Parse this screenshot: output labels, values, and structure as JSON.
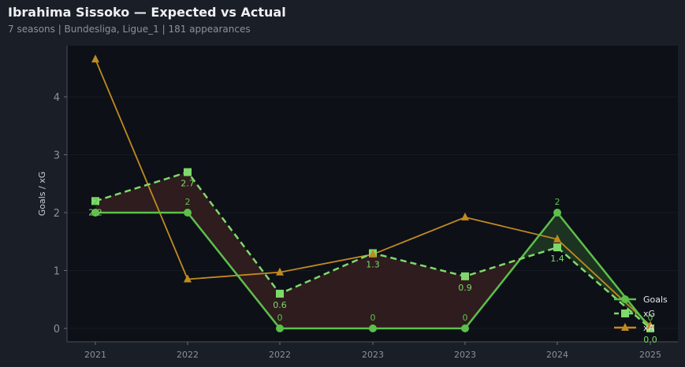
{
  "header": {
    "title": "Ibrahima Sissoko — Expected vs Actual",
    "subtitle": "7 seasons | Bundesliga, Ligue_1 | 181 appearances"
  },
  "chart_data": {
    "type": "line",
    "title": "Ibrahima Sissoko — Expected vs Actual",
    "subtitle": "7 seasons | Bundesliga, Ligue_1 | 181 appearances",
    "xlabel": "",
    "ylabel": "Goals / xG",
    "categories": [
      "2021",
      "2022",
      "2022",
      "2023",
      "2023",
      "2024",
      "2025"
    ],
    "ylim": [
      -0.25,
      4.85
    ],
    "yticks": [
      0,
      1,
      2,
      3,
      4
    ],
    "grid": true,
    "legend_position": "lower right",
    "series": [
      {
        "name": "Goals",
        "values": [
          2,
          2,
          0,
          0,
          0,
          2,
          0
        ],
        "labels": [
          "2",
          "2",
          "0",
          "0",
          "0",
          "2",
          "0"
        ],
        "color": "#5cc04a",
        "style": "solid",
        "marker": "circle"
      },
      {
        "name": "xG",
        "values": [
          2.2,
          2.7,
          0.6,
          1.3,
          0.9,
          1.4,
          0.0
        ],
        "labels": [
          "2.2",
          "2.7",
          "0.6",
          "1.3",
          "0.9",
          "1.4",
          "0.0"
        ],
        "color": "#7ed96a",
        "style": "dashed",
        "marker": "square"
      },
      {
        "name": "xA",
        "values": [
          4.65,
          0.85,
          0.97,
          1.28,
          1.92,
          1.54,
          0.05
        ],
        "color": "#c08a20",
        "style": "solid",
        "marker": "triangle"
      }
    ],
    "fill_under_color": "#2e1c1e",
    "fill_over_color": "#1d3322"
  }
}
